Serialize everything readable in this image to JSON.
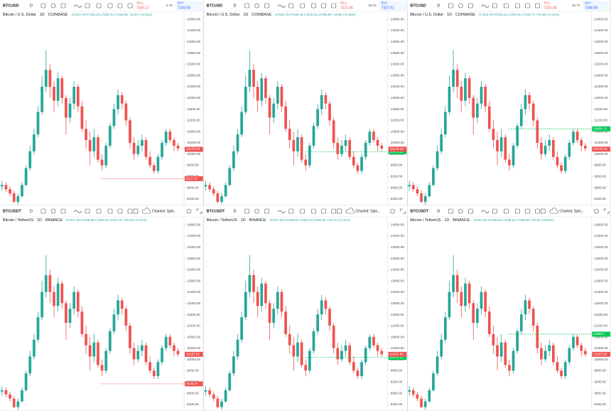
{
  "ylim": [
    8170,
    14830
  ],
  "yticks": [
    {
      "value": 14800,
      "label": "14800.00"
    },
    {
      "value": 14400,
      "label": "14400.00"
    },
    {
      "value": 14000,
      "label": "14000.00"
    },
    {
      "value": 13600,
      "label": "13600.00"
    },
    {
      "value": 13200,
      "label": "13200.00"
    },
    {
      "value": 12800,
      "label": "12800.00"
    },
    {
      "value": 12400,
      "label": "12400.00"
    },
    {
      "value": 12000,
      "label": "12000.00"
    },
    {
      "value": 11600,
      "label": "11600.00"
    },
    {
      "value": 11200,
      "label": "11200.00"
    },
    {
      "value": 10800,
      "label": "10800.00"
    },
    {
      "value": 10400,
      "label": "10400.00"
    },
    {
      "value": 10000,
      "label": "10000.00"
    },
    {
      "value": 9600,
      "label": "9600.00"
    },
    {
      "value": 9200,
      "label": "9200.00"
    },
    {
      "value": 8800,
      "label": "8800.00"
    },
    {
      "value": 8400,
      "label": "8400.00"
    }
  ],
  "up_color": "#26a69a",
  "down_color": "#ef5350",
  "markets": [
    {
      "symbol": "BTCUSD",
      "interval_button": "D",
      "name": "Bitcoin / U.S. Dollar",
      "interval": "1D",
      "exchange": "COINBASE",
      "candles": [
        [
          8850,
          9050,
          8700,
          8900
        ],
        [
          8900,
          9000,
          8650,
          8750
        ],
        [
          8750,
          8850,
          8500,
          8600
        ],
        [
          8600,
          8700,
          8250,
          8300
        ],
        [
          8300,
          8600,
          8200,
          8500
        ],
        [
          8500,
          9000,
          8450,
          8900
        ],
        [
          8900,
          9600,
          8850,
          9500
        ],
        [
          9500,
          10300,
          9400,
          10100
        ],
        [
          10100,
          10900,
          10000,
          10700
        ],
        [
          10700,
          11700,
          10600,
          11500
        ],
        [
          11500,
          12800,
          11400,
          12400
        ],
        [
          12400,
          13700,
          12200,
          13000
        ],
        [
          13000,
          13200,
          12000,
          12400
        ],
        [
          12400,
          12600,
          11500,
          11900
        ],
        [
          11900,
          12900,
          11700,
          12700
        ],
        [
          12700,
          12800,
          11800,
          12000
        ],
        [
          12000,
          12100,
          10700,
          11300
        ],
        [
          11300,
          12000,
          11100,
          11800
        ],
        [
          11800,
          12600,
          11600,
          12400
        ],
        [
          12400,
          12500,
          11500,
          11700
        ],
        [
          11700,
          11900,
          10800,
          10900
        ],
        [
          10900,
          11200,
          10200,
          10500
        ],
        [
          10500,
          10800,
          9600,
          10100
        ],
        [
          10100,
          10900,
          9900,
          10600
        ],
        [
          10600,
          10700,
          9700,
          9800
        ],
        [
          9800,
          10000,
          9400,
          9600
        ],
        [
          9600,
          10400,
          9500,
          10300
        ],
        [
          10300,
          11100,
          10200,
          11000
        ],
        [
          11000,
          11800,
          10900,
          11600
        ],
        [
          11600,
          12300,
          11400,
          12100
        ],
        [
          12100,
          12200,
          11600,
          11800
        ],
        [
          11800,
          11900,
          11000,
          11200
        ],
        [
          11200,
          11300,
          10200,
          10400
        ],
        [
          10400,
          10600,
          9800,
          10000
        ],
        [
          10000,
          10500,
          9900,
          10300
        ],
        [
          10300,
          10700,
          10100,
          10500
        ],
        [
          10500,
          10600,
          9800,
          9900
        ],
        [
          9900,
          10100,
          9500,
          9600
        ],
        [
          9600,
          9700,
          9300,
          9400
        ],
        [
          9400,
          10000,
          9300,
          9900
        ],
        [
          9900,
          10500,
          9800,
          10400
        ],
        [
          10400,
          10900,
          10300,
          10800
        ],
        [
          10800,
          10900,
          10400,
          10500
        ],
        [
          10500,
          10600,
          10100,
          10300
        ],
        [
          10300,
          10400,
          10100,
          10200
        ]
      ],
      "panels": [
        {
          "sell_label": "SELL",
          "sell": "7330.17",
          "spread": "5.76",
          "buy_label": "BUY",
          "buy": "7335.93",
          "ohlc": "O7310.79 H7426.15 L7220.31 C7333.66 +22.87 (+0.31%)",
          "last_price": 10170.26,
          "price_line": {
            "value": 9127.37,
            "color": "#ef5350"
          }
        },
        {
          "sell_label": "SELL",
          "sell": "7321.46",
          "spread": "16.15",
          "buy_label": "BUY",
          "buy": "7337.61",
          "ohlc": "O7310.79 H7426.15 L7220.31 C7335.59 +24.80 (+0.34%)",
          "last_price": 10175.26,
          "price_line": {
            "value": 10082.21,
            "color": "#00c853"
          }
        },
        {
          "sell_label": "SELL",
          "sell": "7323.08",
          "spread": "25.72",
          "buy_label": "BUY",
          "buy": "7348.80",
          "ohlc": "O7310.79 H7426.15 L7220.31 C7342.77 +31.98 (+0.44%)",
          "last_price": 10175.26,
          "price_line": {
            "value": 10900.21,
            "color": "#00c853"
          }
        }
      ]
    },
    {
      "symbol": "BTCUSDT",
      "interval_button": "D",
      "name": "Bitcoin / TetherUS",
      "interval": "1D",
      "exchange": "BINANCE",
      "candles": [
        [
          8860,
          9060,
          8710,
          8910
        ],
        [
          8910,
          9010,
          8660,
          8760
        ],
        [
          8760,
          8860,
          8510,
          8610
        ],
        [
          8610,
          8710,
          8260,
          8310
        ],
        [
          8310,
          8610,
          8210,
          8510
        ],
        [
          8510,
          9010,
          8460,
          8910
        ],
        [
          8910,
          9610,
          8860,
          9510
        ],
        [
          9510,
          10310,
          9410,
          10110
        ],
        [
          10110,
          10910,
          10010,
          10710
        ],
        [
          10710,
          11710,
          10610,
          11510
        ],
        [
          11510,
          12810,
          11410,
          12410
        ],
        [
          12410,
          13720,
          12210,
          13010
        ],
        [
          13010,
          13210,
          12010,
          12410
        ],
        [
          12410,
          12610,
          11510,
          11910
        ],
        [
          11910,
          12910,
          11710,
          12710
        ],
        [
          12710,
          12810,
          11810,
          12010
        ],
        [
          12010,
          12110,
          10710,
          11310
        ],
        [
          11310,
          12010,
          11110,
          11810
        ],
        [
          11810,
          12610,
          11610,
          12410
        ],
        [
          12410,
          12510,
          11510,
          11710
        ],
        [
          11710,
          11910,
          10810,
          10910
        ],
        [
          10910,
          11210,
          10210,
          10510
        ],
        [
          10510,
          10810,
          9610,
          10110
        ],
        [
          10110,
          10910,
          9910,
          10610
        ],
        [
          10610,
          10710,
          9710,
          9810
        ],
        [
          9810,
          10010,
          9410,
          9610
        ],
        [
          9610,
          10410,
          9510,
          10310
        ],
        [
          10310,
          11110,
          10210,
          11010
        ],
        [
          11010,
          11810,
          10910,
          11610
        ],
        [
          11610,
          12310,
          11410,
          12110
        ],
        [
          12110,
          12210,
          11610,
          11810
        ],
        [
          11810,
          11910,
          11010,
          11210
        ],
        [
          11210,
          11310,
          10210,
          10410
        ],
        [
          10410,
          10610,
          9810,
          10010
        ],
        [
          10010,
          10510,
          9910,
          10310
        ],
        [
          10310,
          10710,
          10110,
          10510
        ],
        [
          10510,
          10610,
          9810,
          9910
        ],
        [
          9910,
          10110,
          9510,
          9610
        ],
        [
          9610,
          9710,
          9310,
          9410
        ],
        [
          9410,
          10010,
          9310,
          9910
        ],
        [
          9910,
          10510,
          9810,
          10410
        ],
        [
          10410,
          10910,
          10310,
          10810
        ],
        [
          10810,
          10910,
          10410,
          10510
        ],
        [
          10510,
          10610,
          10110,
          10310
        ],
        [
          10310,
          10410,
          10110,
          10190
        ]
      ],
      "panels": [
        {
          "charted": "Charted: Splo...",
          "ohlc": "O7317.30 H7436.68 L7226.13 C7347.37 +30.28 (+0.41%)",
          "last_price": 10187.82,
          "price_line": {
            "value": 9136.37,
            "color": "#ef5350"
          }
        },
        {
          "charted": "Charted: Splo...",
          "ohlc": "O7317.30 H7436.68 L7226.13 C7351.81 +34.72 (+0.47%)",
          "last_price": 10187.82,
          "price_line": {
            "value": 10079.23,
            "color": "#00c853"
          }
        },
        {
          "charted": "Charted: Splo...",
          "ohlc": "O7317.30 H7436.68 L7226.13 C7354.90 +37.81 (+0.52%)",
          "last_price": 10187.82,
          "price_line": {
            "value": 10906.7,
            "color": "#00c853"
          }
        }
      ]
    }
  ]
}
